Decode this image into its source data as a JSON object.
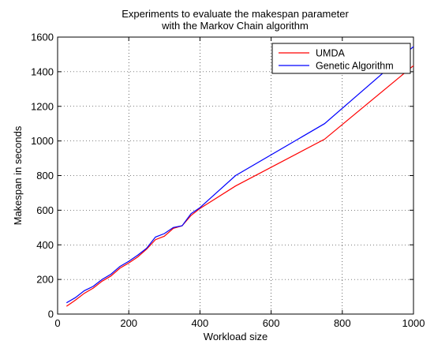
{
  "chart_data": {
    "type": "line",
    "title_lines": [
      "Experiments to evaluate the makespan parameter",
      "with the Markov Chain algorithm"
    ],
    "xlabel": "Workload size",
    "ylabel": "Makespan in seconds",
    "xlim": [
      0,
      1000
    ],
    "ylim": [
      0,
      1600
    ],
    "xticks": [
      0,
      200,
      400,
      600,
      800,
      1000
    ],
    "yticks": [
      0,
      200,
      400,
      600,
      800,
      1000,
      1200,
      1400,
      1600
    ],
    "grid": "dotted",
    "legend_position": "top-right",
    "series": [
      {
        "name": "UMDA",
        "color": "#ff0000",
        "x": [
          25,
          50,
          75,
          100,
          125,
          150,
          175,
          200,
          225,
          250,
          275,
          300,
          325,
          350,
          375,
          400,
          500,
          750,
          1000
        ],
        "y": [
          45,
          80,
          120,
          150,
          190,
          220,
          265,
          295,
          330,
          375,
          430,
          450,
          495,
          510,
          570,
          610,
          740,
          1010,
          1435
        ]
      },
      {
        "name": "Genetic Algorithm",
        "color": "#0000ff",
        "x": [
          25,
          50,
          75,
          100,
          125,
          150,
          175,
          200,
          225,
          250,
          275,
          300,
          325,
          350,
          375,
          400,
          500,
          750,
          1000
        ],
        "y": [
          65,
          95,
          135,
          160,
          200,
          230,
          275,
          305,
          340,
          380,
          445,
          465,
          500,
          510,
          580,
          615,
          800,
          1100,
          1545
        ]
      }
    ]
  }
}
